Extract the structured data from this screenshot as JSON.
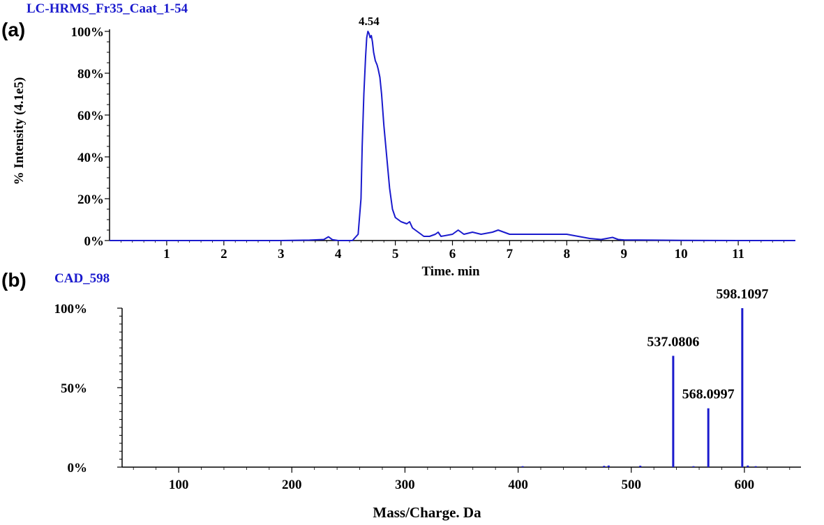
{
  "colors": {
    "trace": "#1a1acd",
    "axis": "#000000",
    "run_title": "#1a1acd"
  },
  "chart_data": [
    {
      "type": "line",
      "panel_label": "(a)",
      "title": "LC-HRMS_Fr35_Caat_1-54",
      "xlabel": "Time. min",
      "ylabel": "% Intensity (4.1e5)",
      "xlim": [
        0,
        12.0
      ],
      "ylim": [
        0,
        100
      ],
      "x_ticks": [
        1,
        2,
        3,
        4,
        5,
        6,
        7,
        8,
        9,
        10,
        11
      ],
      "y_ticks": [
        {
          "value": 0,
          "label": "0%"
        },
        {
          "value": 20,
          "label": "20%"
        },
        {
          "value": 40,
          "label": "40%"
        },
        {
          "value": 60,
          "label": "60%"
        },
        {
          "value": 80,
          "label": "80%"
        },
        {
          "value": 100,
          "label": "100%"
        }
      ],
      "peak_labels": [
        {
          "x": 4.54,
          "y": 100,
          "label": "4.54"
        }
      ],
      "series": [
        {
          "x": [
            0.0,
            0.5,
            1.0,
            2.0,
            3.0,
            3.5,
            3.75,
            3.83,
            3.9,
            4.0,
            4.25,
            4.35,
            4.4,
            4.42,
            4.45,
            4.48,
            4.5,
            4.52,
            4.54,
            4.56,
            4.58,
            4.6,
            4.62,
            4.65,
            4.68,
            4.7,
            4.73,
            4.76,
            4.8,
            4.85,
            4.9,
            4.95,
            5.0,
            5.1,
            5.2,
            5.25,
            5.3,
            5.4,
            5.5,
            5.6,
            5.7,
            5.75,
            5.8,
            6.0,
            6.1,
            6.15,
            6.2,
            6.35,
            6.5,
            6.7,
            6.8,
            7.0,
            7.2,
            7.4,
            7.6,
            7.8,
            8.0,
            8.2,
            8.4,
            8.6,
            8.8,
            8.9,
            9.0,
            9.5,
            10.0,
            11.0,
            12.0
          ],
          "y": [
            0,
            0,
            0,
            0,
            0,
            0.2,
            0.5,
            1.8,
            0.4,
            0,
            0,
            3,
            20,
            45,
            70,
            88,
            97,
            100,
            99,
            97,
            98,
            95,
            90,
            86,
            84,
            82,
            78,
            70,
            55,
            40,
            25,
            15,
            11,
            9,
            8,
            9,
            6,
            4,
            2,
            2,
            3,
            4,
            2,
            3,
            5,
            4,
            3,
            4,
            3,
            4,
            5,
            3,
            3,
            3,
            3,
            3,
            3,
            2,
            1,
            0.5,
            1.5,
            0.5,
            0.3,
            0.2,
            0.1,
            0,
            0
          ]
        }
      ]
    },
    {
      "type": "bar",
      "panel_label": "(b)",
      "title": "CAD_598",
      "xlabel": "Mass/Charge. Da",
      "ylabel": "",
      "xlim": [
        50,
        650
      ],
      "ylim": [
        0,
        100
      ],
      "x_ticks": [
        100,
        200,
        300,
        400,
        500,
        600
      ],
      "y_ticks": [
        {
          "value": 0,
          "label": "0%"
        },
        {
          "value": 50,
          "label": "50%"
        },
        {
          "value": 100,
          "label": "100%"
        }
      ],
      "x": [
        404,
        476,
        480,
        508,
        537.0806,
        555,
        568.0997,
        598.1097,
        603,
        610
      ],
      "values": [
        0.6,
        0.8,
        1.0,
        0.9,
        70,
        0.6,
        37,
        100,
        1.0,
        0.6
      ],
      "peak_labels": [
        {
          "x": 537.0806,
          "label": "537.0806"
        },
        {
          "x": 568.0997,
          "label": "568.0997"
        },
        {
          "x": 598.1097,
          "label": "598.1097"
        }
      ]
    }
  ]
}
